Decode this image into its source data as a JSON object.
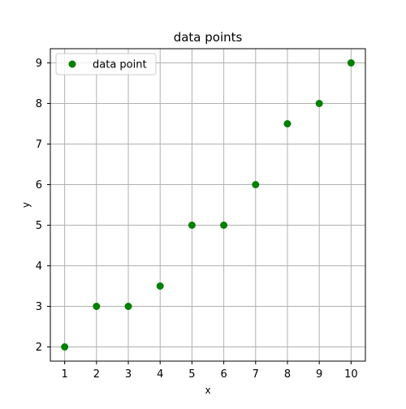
{
  "chart_data": {
    "type": "scatter",
    "title": "data points",
    "xlabel": "x",
    "ylabel": "y",
    "xlim": [
      0.55,
      10.45
    ],
    "ylim": [
      1.65,
      9.35
    ],
    "x_ticks": [
      1,
      2,
      3,
      4,
      5,
      6,
      7,
      8,
      9,
      10
    ],
    "y_ticks": [
      2,
      3,
      4,
      5,
      6,
      7,
      8,
      9
    ],
    "grid": true,
    "legend": {
      "placement": "top-left"
    },
    "series": [
      {
        "name": "data point",
        "color": "#008000",
        "points": [
          {
            "x": 1,
            "y": 2
          },
          {
            "x": 2,
            "y": 3
          },
          {
            "x": 3,
            "y": 3
          },
          {
            "x": 4,
            "y": 3.5
          },
          {
            "x": 5,
            "y": 5
          },
          {
            "x": 6,
            "y": 5
          },
          {
            "x": 7,
            "y": 6
          },
          {
            "x": 8,
            "y": 7.5
          },
          {
            "x": 9,
            "y": 8
          },
          {
            "x": 10,
            "y": 9
          }
        ]
      }
    ]
  }
}
